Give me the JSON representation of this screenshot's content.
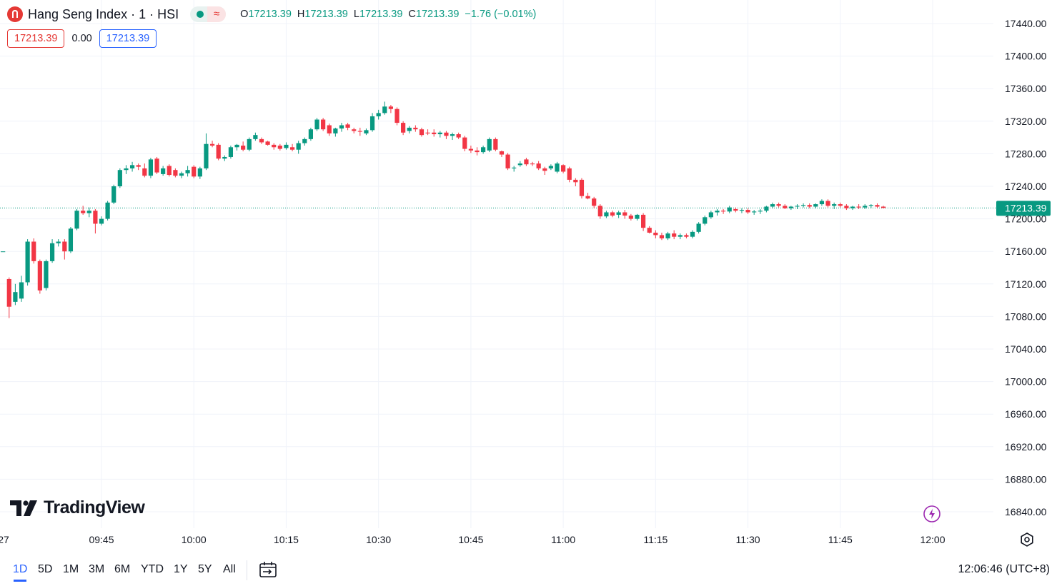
{
  "header": {
    "symbol_title": "Hang Seng Index · 1 · HSI",
    "status_wave": "≈",
    "ohlc": {
      "o_label": "O",
      "o": "17213.39",
      "h_label": "H",
      "h": "17213.39",
      "l_label": "L",
      "l": "17213.39",
      "c_label": "C",
      "c": "17213.39",
      "change": "−1.76 (−0.01%)"
    },
    "sell_price": "17213.39",
    "spread": "0.00",
    "buy_price": "17213.39"
  },
  "watermark": "TradingView",
  "range_buttons": [
    "1D",
    "5D",
    "1M",
    "3M",
    "6M",
    "YTD",
    "1Y",
    "5Y",
    "All"
  ],
  "active_range": "1D",
  "clock": "12:06:46 (UTC+8)",
  "colors": {
    "up": "#089981",
    "down": "#f23645",
    "grid": "#f0f3fa",
    "last_price": "#089981"
  },
  "chart_data": {
    "type": "candlestick",
    "title": "Hang Seng Index · 1 · HSI",
    "y_ticks": [
      17440,
      17400,
      17360,
      17320,
      17280,
      17240,
      17200,
      17160,
      17120,
      17080,
      17040,
      17000,
      16960,
      16920,
      16880,
      16840
    ],
    "y_tick_labels": [
      "17440.00",
      "17400.00",
      "17360.00",
      "17320.00",
      "17280.00",
      "17240.00",
      "17200.00",
      "17160.00",
      "17120.00",
      "17080.00",
      "17040.00",
      "17000.00",
      "16960.00",
      "16920.00",
      "16880.00",
      "16840.00"
    ],
    "ylim": [
      16810,
      17465
    ],
    "x_tick_labels": [
      "27",
      "09:45",
      "10:00",
      "10:15",
      "10:30",
      "10:45",
      "11:00",
      "11:15",
      "11:30",
      "11:45",
      "12:00"
    ],
    "x_tick_minutes": [
      -1,
      0,
      15,
      30,
      45,
      60,
      75,
      90,
      105,
      120,
      135
    ],
    "last_price": 17213.39,
    "last_price_label": "17213.39",
    "candles": [
      {
        "m": -16.0,
        "o": 17160,
        "h": 17160,
        "l": 17160,
        "c": 17160
      },
      {
        "m": -15.0,
        "o": 17126,
        "h": 17128,
        "l": 17078,
        "c": 17092
      },
      {
        "m": -14.0,
        "o": 17098,
        "h": 17120,
        "l": 17094,
        "c": 17110
      },
      {
        "m": -13.0,
        "o": 17102,
        "h": 17130,
        "l": 17098,
        "c": 17122
      },
      {
        "m": -12.0,
        "o": 17122,
        "h": 17175,
        "l": 17118,
        "c": 17172
      },
      {
        "m": -11.0,
        "o": 17172,
        "h": 17176,
        "l": 17145,
        "c": 17148
      },
      {
        "m": -10.0,
        "o": 17148,
        "h": 17150,
        "l": 17108,
        "c": 17112
      },
      {
        "m": -9.0,
        "o": 17115,
        "h": 17150,
        "l": 17112,
        "c": 17148
      },
      {
        "m": -8.0,
        "o": 17148,
        "h": 17175,
        "l": 17146,
        "c": 17170
      },
      {
        "m": -7.0,
        "o": 17170,
        "h": 17175,
        "l": 17166,
        "c": 17172
      },
      {
        "m": -6.0,
        "o": 17172,
        "h": 17175,
        "l": 17150,
        "c": 17160
      },
      {
        "m": -5.0,
        "o": 17160,
        "h": 17190,
        "l": 17158,
        "c": 17188
      },
      {
        "m": -4.0,
        "o": 17188,
        "h": 17212,
        "l": 17186,
        "c": 17210
      },
      {
        "m": -3.0,
        "o": 17210,
        "h": 17216,
        "l": 17205,
        "c": 17207
      },
      {
        "m": -2.0,
        "o": 17207,
        "h": 17214,
        "l": 17202,
        "c": 17210
      },
      {
        "m": -1.0,
        "o": 17210,
        "h": 17212,
        "l": 17182,
        "c": 17194
      },
      {
        "m": 0.0,
        "o": 17194,
        "h": 17203,
        "l": 17192,
        "c": 17200
      },
      {
        "m": 1.0,
        "o": 17200,
        "h": 17222,
        "l": 17198,
        "c": 17220
      },
      {
        "m": 2.0,
        "o": 17220,
        "h": 17242,
        "l": 17218,
        "c": 17240
      },
      {
        "m": 3.0,
        "o": 17240,
        "h": 17262,
        "l": 17238,
        "c": 17260
      },
      {
        "m": 4.0,
        "o": 17260,
        "h": 17266,
        "l": 17255,
        "c": 17262
      },
      {
        "m": 5.0,
        "o": 17262,
        "h": 17270,
        "l": 17258,
        "c": 17266
      },
      {
        "m": 6.0,
        "o": 17266,
        "h": 17268,
        "l": 17260,
        "c": 17264
      },
      {
        "m": 7.0,
        "o": 17262,
        "h": 17268,
        "l": 17251,
        "c": 17253
      },
      {
        "m": 8.0,
        "o": 17253,
        "h": 17275,
        "l": 17250,
        "c": 17273
      },
      {
        "m": 9.0,
        "o": 17274,
        "h": 17276,
        "l": 17255,
        "c": 17257
      },
      {
        "m": 10.0,
        "o": 17255,
        "h": 17265,
        "l": 17253,
        "c": 17262
      },
      {
        "m": 11.0,
        "o": 17265,
        "h": 17267,
        "l": 17252,
        "c": 17254
      },
      {
        "m": 12.0,
        "o": 17260,
        "h": 17262,
        "l": 17251,
        "c": 17253
      },
      {
        "m": 13.0,
        "o": 17253,
        "h": 17258,
        "l": 17250,
        "c": 17256
      },
      {
        "m": 14.0,
        "o": 17256,
        "h": 17265,
        "l": 17252,
        "c": 17260
      },
      {
        "m": 15.0,
        "o": 17264,
        "h": 17266,
        "l": 17250,
        "c": 17252
      },
      {
        "m": 16.0,
        "o": 17252,
        "h": 17264,
        "l": 17249,
        "c": 17262
      },
      {
        "m": 17.0,
        "o": 17262,
        "h": 17305,
        "l": 17260,
        "c": 17292
      },
      {
        "m": 18.0,
        "o": 17292,
        "h": 17296,
        "l": 17288,
        "c": 17290
      },
      {
        "m": 19.0,
        "o": 17291,
        "h": 17293,
        "l": 17272,
        "c": 17274
      },
      {
        "m": 20.0,
        "o": 17274,
        "h": 17278,
        "l": 17271,
        "c": 17276
      },
      {
        "m": 21.0,
        "o": 17276,
        "h": 17290,
        "l": 17274,
        "c": 17288
      },
      {
        "m": 22.0,
        "o": 17288,
        "h": 17292,
        "l": 17284,
        "c": 17291
      },
      {
        "m": 23.0,
        "o": 17290,
        "h": 17295,
        "l": 17283,
        "c": 17285
      },
      {
        "m": 24.0,
        "o": 17285,
        "h": 17300,
        "l": 17283,
        "c": 17298
      },
      {
        "m": 25.0,
        "o": 17298,
        "h": 17306,
        "l": 17296,
        "c": 17303
      },
      {
        "m": 26.0,
        "o": 17298,
        "h": 17300,
        "l": 17292,
        "c": 17294
      },
      {
        "m": 27.0,
        "o": 17295,
        "h": 17296,
        "l": 17290,
        "c": 17291
      },
      {
        "m": 28.0,
        "o": 17291,
        "h": 17293,
        "l": 17285,
        "c": 17288
      },
      {
        "m": 29.0,
        "o": 17290,
        "h": 17292,
        "l": 17284,
        "c": 17286
      },
      {
        "m": 30.0,
        "o": 17287,
        "h": 17294,
        "l": 17285,
        "c": 17291
      },
      {
        "m": 31.0,
        "o": 17288,
        "h": 17292,
        "l": 17283,
        "c": 17285
      },
      {
        "m": 32.0,
        "o": 17285,
        "h": 17296,
        "l": 17280,
        "c": 17293
      },
      {
        "m": 33.0,
        "o": 17293,
        "h": 17300,
        "l": 17290,
        "c": 17298
      },
      {
        "m": 34.0,
        "o": 17298,
        "h": 17312,
        "l": 17296,
        "c": 17310
      },
      {
        "m": 35.0,
        "o": 17310,
        "h": 17324,
        "l": 17308,
        "c": 17322
      },
      {
        "m": 36.0,
        "o": 17322,
        "h": 17324,
        "l": 17308,
        "c": 17310
      },
      {
        "m": 37.0,
        "o": 17315,
        "h": 17317,
        "l": 17302,
        "c": 17305
      },
      {
        "m": 38.0,
        "o": 17305,
        "h": 17312,
        "l": 17301,
        "c": 17311
      },
      {
        "m": 39.0,
        "o": 17311,
        "h": 17318,
        "l": 17307,
        "c": 17315
      },
      {
        "m": 40.0,
        "o": 17316,
        "h": 17318,
        "l": 17309,
        "c": 17312
      },
      {
        "m": 41.0,
        "o": 17310,
        "h": 17312,
        "l": 17305,
        "c": 17308
      },
      {
        "m": 42.0,
        "o": 17308,
        "h": 17312,
        "l": 17302,
        "c": 17307
      },
      {
        "m": 43.0,
        "o": 17305,
        "h": 17311,
        "l": 17303,
        "c": 17309
      },
      {
        "m": 44.0,
        "o": 17309,
        "h": 17330,
        "l": 17307,
        "c": 17326
      },
      {
        "m": 45.0,
        "o": 17326,
        "h": 17334,
        "l": 17322,
        "c": 17330
      },
      {
        "m": 46.0,
        "o": 17330,
        "h": 17344,
        "l": 17328,
        "c": 17338
      },
      {
        "m": 47.0,
        "o": 17338,
        "h": 17340,
        "l": 17330,
        "c": 17335
      },
      {
        "m": 48.0,
        "o": 17335,
        "h": 17337,
        "l": 17315,
        "c": 17318
      },
      {
        "m": 49.0,
        "o": 17318,
        "h": 17320,
        "l": 17303,
        "c": 17306
      },
      {
        "m": 50.0,
        "o": 17308,
        "h": 17314,
        "l": 17305,
        "c": 17312
      },
      {
        "m": 51.0,
        "o": 17312,
        "h": 17315,
        "l": 17307,
        "c": 17310
      },
      {
        "m": 52.0,
        "o": 17310,
        "h": 17312,
        "l": 17301,
        "c": 17303
      },
      {
        "m": 53.0,
        "o": 17306,
        "h": 17310,
        "l": 17303,
        "c": 17305
      },
      {
        "m": 54.0,
        "o": 17306,
        "h": 17310,
        "l": 17301,
        "c": 17304
      },
      {
        "m": 55.0,
        "o": 17304,
        "h": 17308,
        "l": 17300,
        "c": 17306
      },
      {
        "m": 56.0,
        "o": 17306,
        "h": 17308,
        "l": 17298,
        "c": 17302
      },
      {
        "m": 57.0,
        "o": 17302,
        "h": 17306,
        "l": 17297,
        "c": 17304
      },
      {
        "m": 58.0,
        "o": 17304,
        "h": 17306,
        "l": 17298,
        "c": 17300
      },
      {
        "m": 59.0,
        "o": 17300,
        "h": 17302,
        "l": 17283,
        "c": 17286
      },
      {
        "m": 60.0,
        "o": 17286,
        "h": 17290,
        "l": 17281,
        "c": 17284
      },
      {
        "m": 61.0,
        "o": 17284,
        "h": 17288,
        "l": 17278,
        "c": 17282
      },
      {
        "m": 62.0,
        "o": 17282,
        "h": 17290,
        "l": 17280,
        "c": 17288
      },
      {
        "m": 63.0,
        "o": 17284,
        "h": 17300,
        "l": 17282,
        "c": 17298
      },
      {
        "m": 64.0,
        "o": 17298,
        "h": 17300,
        "l": 17283,
        "c": 17285
      },
      {
        "m": 65.0,
        "o": 17283,
        "h": 17284,
        "l": 17276,
        "c": 17279
      },
      {
        "m": 66.0,
        "o": 17279,
        "h": 17281,
        "l": 17260,
        "c": 17262
      },
      {
        "m": 67.0,
        "o": 17262,
        "h": 17265,
        "l": 17258,
        "c": 17263
      },
      {
        "m": 68.0,
        "o": 17266,
        "h": 17271,
        "l": 17264,
        "c": 17268
      },
      {
        "m": 69.0,
        "o": 17273,
        "h": 17275,
        "l": 17265,
        "c": 17267
      },
      {
        "m": 70.0,
        "o": 17268,
        "h": 17270,
        "l": 17265,
        "c": 17267
      },
      {
        "m": 71.0,
        "o": 17268,
        "h": 17271,
        "l": 17260,
        "c": 17262
      },
      {
        "m": 72.0,
        "o": 17262,
        "h": 17264,
        "l": 17254,
        "c": 17259
      },
      {
        "m": 73.0,
        "o": 17262,
        "h": 17267,
        "l": 17260,
        "c": 17265
      },
      {
        "m": 74.0,
        "o": 17258,
        "h": 17270,
        "l": 17256,
        "c": 17268
      },
      {
        "m": 75.0,
        "o": 17266,
        "h": 17267,
        "l": 17256,
        "c": 17258
      },
      {
        "m": 76.0,
        "o": 17262,
        "h": 17264,
        "l": 17245,
        "c": 17248
      },
      {
        "m": 77.0,
        "o": 17248,
        "h": 17250,
        "l": 17240,
        "c": 17245
      },
      {
        "m": 78.0,
        "o": 17248,
        "h": 17250,
        "l": 17225,
        "c": 17228
      },
      {
        "m": 79.0,
        "o": 17228,
        "h": 17232,
        "l": 17224,
        "c": 17225
      },
      {
        "m": 80.0,
        "o": 17225,
        "h": 17227,
        "l": 17213,
        "c": 17216
      },
      {
        "m": 81.0,
        "o": 17216,
        "h": 17218,
        "l": 17200,
        "c": 17203
      },
      {
        "m": 82.0,
        "o": 17203,
        "h": 17210,
        "l": 17201,
        "c": 17208
      },
      {
        "m": 83.0,
        "o": 17208,
        "h": 17210,
        "l": 17202,
        "c": 17204
      },
      {
        "m": 84.0,
        "o": 17205,
        "h": 17210,
        "l": 17201,
        "c": 17208
      },
      {
        "m": 85.0,
        "o": 17208,
        "h": 17211,
        "l": 17200,
        "c": 17204
      },
      {
        "m": 86.0,
        "o": 17204,
        "h": 17206,
        "l": 17198,
        "c": 17200
      },
      {
        "m": 87.0,
        "o": 17200,
        "h": 17206,
        "l": 17198,
        "c": 17205
      },
      {
        "m": 88.0,
        "o": 17205,
        "h": 17207,
        "l": 17185,
        "c": 17189
      },
      {
        "m": 89.0,
        "o": 17189,
        "h": 17191,
        "l": 17182,
        "c": 17183
      },
      {
        "m": 90.0,
        "o": 17183,
        "h": 17186,
        "l": 17176,
        "c": 17180
      },
      {
        "m": 91.0,
        "o": 17180,
        "h": 17183,
        "l": 17174,
        "c": 17176
      },
      {
        "m": 92.0,
        "o": 17176,
        "h": 17184,
        "l": 17174,
        "c": 17182
      },
      {
        "m": 93.0,
        "o": 17182,
        "h": 17186,
        "l": 17175,
        "c": 17178
      },
      {
        "m": 94.0,
        "o": 17178,
        "h": 17182,
        "l": 17175,
        "c": 17180
      },
      {
        "m": 95.0,
        "o": 17180,
        "h": 17182,
        "l": 17176,
        "c": 17178
      },
      {
        "m": 96.0,
        "o": 17178,
        "h": 17186,
        "l": 17176,
        "c": 17184
      },
      {
        "m": 97.0,
        "o": 17184,
        "h": 17196,
        "l": 17182,
        "c": 17194
      },
      {
        "m": 98.0,
        "o": 17194,
        "h": 17204,
        "l": 17192,
        "c": 17202
      },
      {
        "m": 99.0,
        "o": 17202,
        "h": 17210,
        "l": 17200,
        "c": 17208
      },
      {
        "m": 100.0,
        "o": 17208,
        "h": 17212,
        "l": 17204,
        "c": 17210
      },
      {
        "m": 101.0,
        "o": 17210,
        "h": 17212,
        "l": 17206,
        "c": 17209
      },
      {
        "m": 102.0,
        "o": 17209,
        "h": 17216,
        "l": 17207,
        "c": 17214
      },
      {
        "m": 103.0,
        "o": 17212,
        "h": 17214,
        "l": 17208,
        "c": 17210
      },
      {
        "m": 104.0,
        "o": 17210,
        "h": 17213,
        "l": 17207,
        "c": 17211
      },
      {
        "m": 105.0,
        "o": 17211,
        "h": 17213,
        "l": 17206,
        "c": 17208
      },
      {
        "m": 106.0,
        "o": 17208,
        "h": 17211,
        "l": 17205,
        "c": 17209
      },
      {
        "m": 107.0,
        "o": 17209,
        "h": 17212,
        "l": 17206,
        "c": 17210
      },
      {
        "m": 108.0,
        "o": 17210,
        "h": 17216,
        "l": 17208,
        "c": 17215
      },
      {
        "m": 109.0,
        "o": 17215,
        "h": 17220,
        "l": 17213,
        "c": 17218
      },
      {
        "m": 110.0,
        "o": 17218,
        "h": 17220,
        "l": 17214,
        "c": 17216
      },
      {
        "m": 111.0,
        "o": 17216,
        "h": 17218,
        "l": 17212,
        "c": 17213
      },
      {
        "m": 112.0,
        "o": 17213,
        "h": 17216,
        "l": 17211,
        "c": 17215
      },
      {
        "m": 113.0,
        "o": 17215,
        "h": 17218,
        "l": 17212,
        "c": 17216
      },
      {
        "m": 114.0,
        "o": 17216,
        "h": 17219,
        "l": 17214,
        "c": 17217
      },
      {
        "m": 115.0,
        "o": 17217,
        "h": 17219,
        "l": 17213,
        "c": 17215
      },
      {
        "m": 116.0,
        "o": 17215,
        "h": 17219,
        "l": 17213,
        "c": 17218
      },
      {
        "m": 117.0,
        "o": 17218,
        "h": 17224,
        "l": 17216,
        "c": 17222
      },
      {
        "m": 118.0,
        "o": 17222,
        "h": 17224,
        "l": 17214,
        "c": 17216
      },
      {
        "m": 119.0,
        "o": 17216,
        "h": 17220,
        "l": 17212,
        "c": 17218
      },
      {
        "m": 120.0,
        "o": 17218,
        "h": 17220,
        "l": 17214,
        "c": 17216
      },
      {
        "m": 121.0,
        "o": 17216,
        "h": 17218,
        "l": 17211,
        "c": 17213
      },
      {
        "m": 122.0,
        "o": 17213,
        "h": 17216,
        "l": 17211,
        "c": 17215
      },
      {
        "m": 123.0,
        "o": 17215,
        "h": 17218,
        "l": 17212,
        "c": 17214
      },
      {
        "m": 124.0,
        "o": 17214,
        "h": 17218,
        "l": 17212,
        "c": 17216
      },
      {
        "m": 125.0,
        "o": 17216,
        "h": 17218,
        "l": 17213,
        "c": 17217
      },
      {
        "m": 126.0,
        "o": 17217,
        "h": 17219,
        "l": 17213,
        "c": 17215
      },
      {
        "m": 127.0,
        "o": 17215,
        "h": 17216,
        "l": 17213,
        "c": 17213.39
      }
    ]
  }
}
